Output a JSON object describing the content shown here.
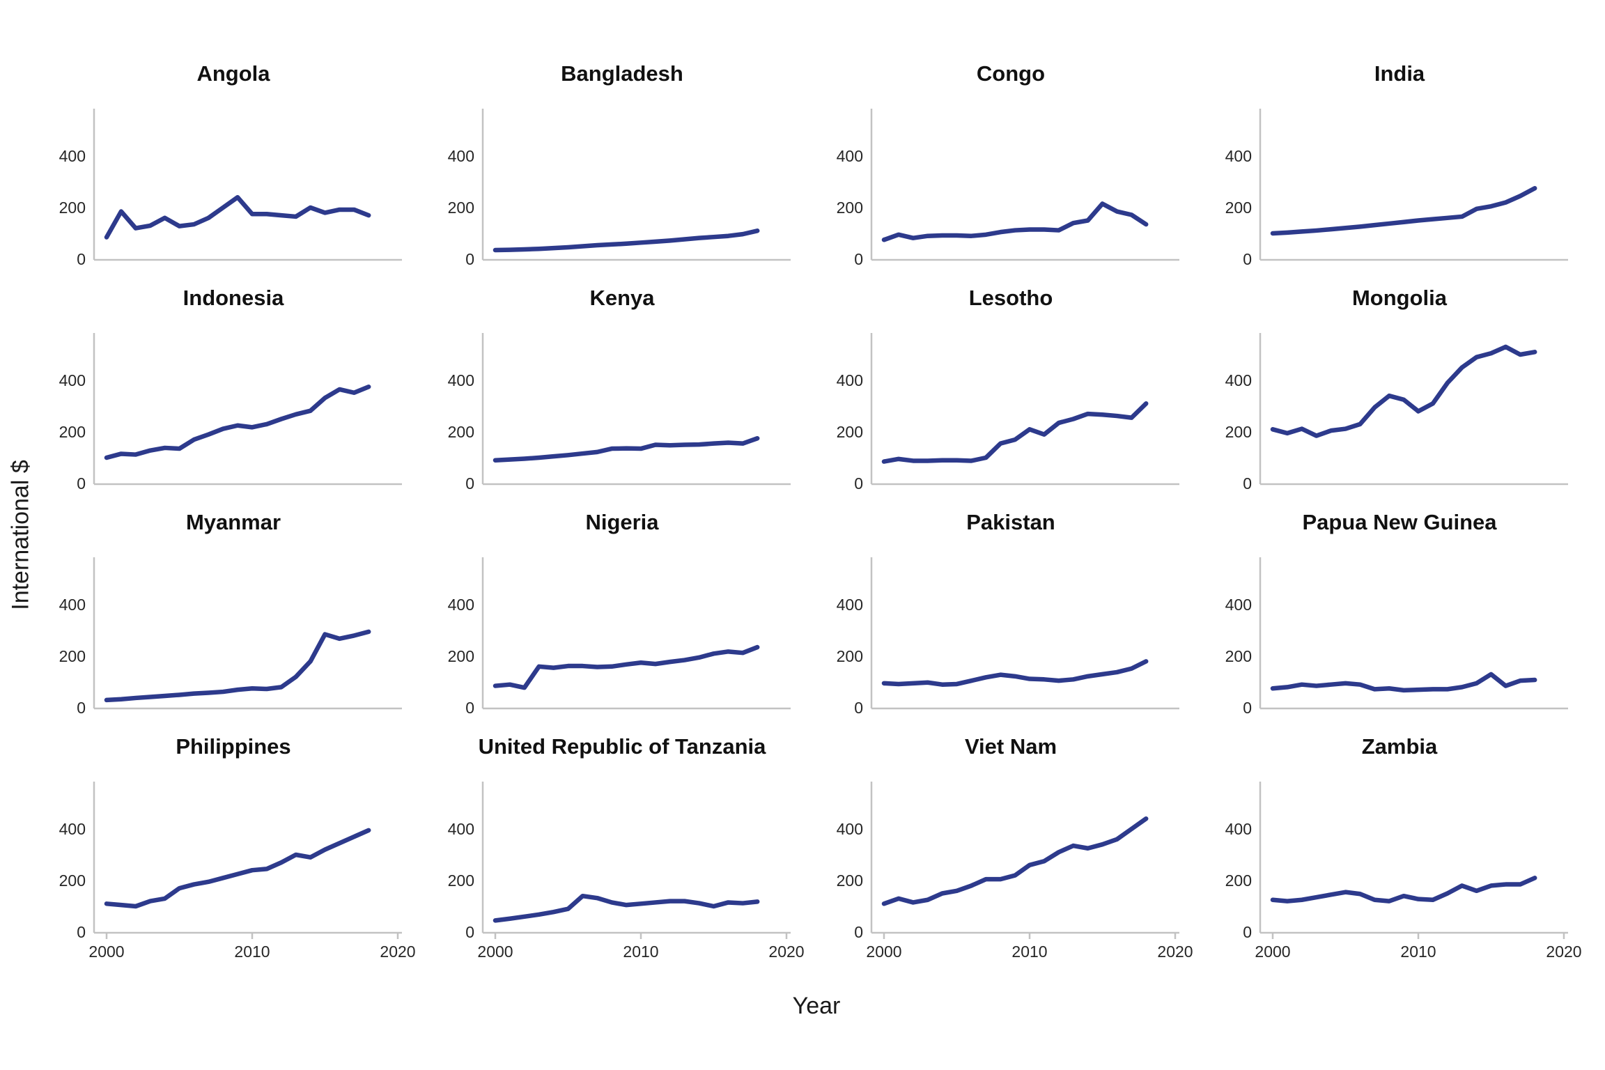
{
  "figure": {
    "y_axis_label": "International $",
    "x_axis_label": "Year",
    "line_color": "#2d3a8c",
    "axis_color": "#c2c2c2",
    "text_color": "#1a1a1a"
  },
  "chart_data": {
    "type": "line",
    "layout": "4x4 small multiples",
    "xlabel": "Year",
    "ylabel": "International $",
    "x": [
      2000,
      2001,
      2002,
      2003,
      2004,
      2005,
      2006,
      2007,
      2008,
      2009,
      2010,
      2011,
      2012,
      2013,
      2014,
      2015,
      2016,
      2017,
      2018
    ],
    "x_ticks": [
      2000,
      2010,
      2020
    ],
    "y_ticks": [
      0,
      200,
      400
    ],
    "xlim": [
      1999,
      2021
    ],
    "ylim": [
      0,
      580
    ],
    "grid": false,
    "legend": false,
    "series": [
      {
        "name": "Angola",
        "values": [
          85,
          185,
          120,
          130,
          160,
          128,
          135,
          160,
          200,
          240,
          175,
          175,
          170,
          165,
          200,
          180,
          192,
          192,
          170
        ]
      },
      {
        "name": "Bangladesh",
        "values": [
          35,
          36,
          38,
          40,
          43,
          46,
          50,
          54,
          57,
          60,
          64,
          68,
          72,
          77,
          82,
          86,
          90,
          97,
          110
        ]
      },
      {
        "name": "Congo",
        "values": [
          75,
          95,
          82,
          90,
          92,
          92,
          90,
          95,
          105,
          112,
          115,
          115,
          112,
          140,
          150,
          215,
          185,
          172,
          135
        ]
      },
      {
        "name": "India",
        "values": [
          100,
          103,
          107,
          111,
          116,
          121,
          126,
          132,
          138,
          144,
          150,
          155,
          160,
          165,
          195,
          205,
          220,
          245,
          275
        ]
      },
      {
        "name": "Indonesia",
        "values": [
          100,
          115,
          112,
          128,
          138,
          135,
          170,
          190,
          212,
          225,
          218,
          230,
          250,
          268,
          282,
          332,
          365,
          352,
          375
        ]
      },
      {
        "name": "Kenya",
        "values": [
          90,
          93,
          96,
          100,
          105,
          110,
          116,
          122,
          135,
          136,
          135,
          150,
          148,
          150,
          151,
          155,
          158,
          155,
          175
        ]
      },
      {
        "name": "Lesotho",
        "values": [
          85,
          95,
          88,
          88,
          90,
          90,
          88,
          100,
          155,
          170,
          210,
          190,
          235,
          250,
          270,
          267,
          262,
          255,
          310
        ]
      },
      {
        "name": "Mongolia",
        "values": [
          210,
          195,
          212,
          185,
          205,
          212,
          230,
          295,
          340,
          325,
          280,
          310,
          390,
          450,
          490,
          505,
          530,
          500,
          510
        ]
      },
      {
        "name": "Myanmar",
        "values": [
          30,
          33,
          38,
          42,
          46,
          50,
          55,
          58,
          62,
          70,
          75,
          73,
          80,
          120,
          180,
          285,
          268,
          280,
          295
        ]
      },
      {
        "name": "Nigeria",
        "values": [
          85,
          90,
          78,
          160,
          155,
          162,
          162,
          158,
          160,
          168,
          175,
          170,
          178,
          185,
          195,
          210,
          218,
          213,
          235
        ]
      },
      {
        "name": "Pakistan",
        "values": [
          95,
          92,
          95,
          98,
          90,
          92,
          105,
          118,
          128,
          122,
          112,
          110,
          105,
          110,
          122,
          130,
          138,
          152,
          180
        ]
      },
      {
        "name": "Papua New Guinea",
        "values": [
          75,
          80,
          90,
          85,
          90,
          95,
          90,
          72,
          75,
          68,
          70,
          72,
          72,
          80,
          95,
          130,
          85,
          105,
          108
        ]
      },
      {
        "name": "Philippines",
        "values": [
          110,
          105,
          100,
          120,
          130,
          170,
          185,
          195,
          210,
          225,
          240,
          245,
          270,
          300,
          290,
          320,
          345,
          370,
          395
        ]
      },
      {
        "name": "United Republic of Tanzania",
        "values": [
          45,
          52,
          60,
          68,
          78,
          90,
          140,
          132,
          115,
          105,
          110,
          115,
          120,
          120,
          112,
          100,
          115,
          112,
          118
        ]
      },
      {
        "name": "Viet Nam",
        "values": [
          110,
          130,
          115,
          125,
          150,
          160,
          180,
          205,
          205,
          220,
          260,
          275,
          310,
          335,
          325,
          340,
          360,
          400,
          440
        ]
      },
      {
        "name": "Zambia",
        "values": [
          125,
          120,
          125,
          135,
          145,
          155,
          148,
          125,
          120,
          140,
          128,
          125,
          150,
          180,
          160,
          180,
          185,
          185,
          210
        ]
      }
    ]
  }
}
